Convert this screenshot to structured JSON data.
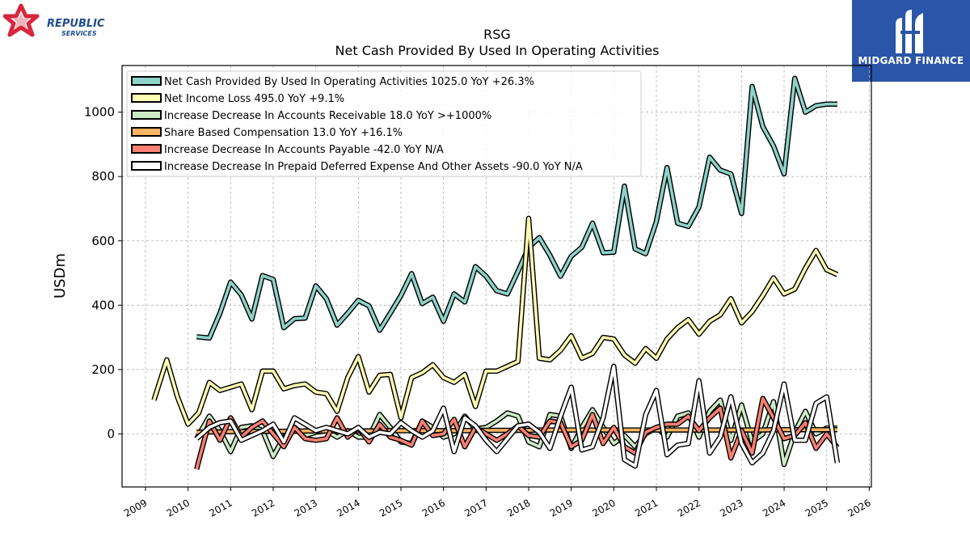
{
  "logos": {
    "left_line1": "REPUBLIC",
    "left_line2": "SERVICES",
    "right_text": "MIDGARD FINANCE"
  },
  "colors": {
    "series": [
      "#8dd3c7",
      "#ffffb3",
      "#ccebc5",
      "#fdb462",
      "#fb8072",
      "#ffffff"
    ],
    "outline": "#000000",
    "republic_red": "#d7263d",
    "republic_blue": "#1f4e8c",
    "midgard_bg": "#2a55a8"
  },
  "chart_data": {
    "type": "line",
    "title": "RSG",
    "subtitle": "Net Cash Provided By Used In Operating Activities",
    "ylabel": "USDm",
    "xlabel": "",
    "xlim": [
      2008.45,
      2026.05
    ],
    "ylim": [
      -165,
      1145
    ],
    "x_ticks": [
      "2009",
      "2010",
      "2011",
      "2012",
      "2013",
      "2014",
      "2015",
      "2016",
      "2017",
      "2018",
      "2019",
      "2020",
      "2021",
      "2022",
      "2023",
      "2024",
      "2025",
      "2026"
    ],
    "y_ticks": [
      0,
      200,
      400,
      600,
      800,
      1000
    ],
    "grid": true,
    "legend_position": "top-left",
    "series": [
      {
        "name": "Net Cash Provided By Used In Operating Activities  1025.0 YoY +26.3%",
        "x": [
          2010.2,
          2010.5,
          2010.75,
          2011.0,
          2011.25,
          2011.5,
          2011.75,
          2012.0,
          2012.25,
          2012.5,
          2012.75,
          2013.0,
          2013.25,
          2013.5,
          2013.75,
          2014.0,
          2014.25,
          2014.5,
          2014.75,
          2015.0,
          2015.25,
          2015.5,
          2015.75,
          2016.0,
          2016.25,
          2016.5,
          2016.75,
          2017.0,
          2017.25,
          2017.5,
          2017.75,
          2018.0,
          2018.25,
          2018.5,
          2018.75,
          2019.0,
          2019.25,
          2019.5,
          2019.75,
          2020.0,
          2020.25,
          2020.5,
          2020.75,
          2021.0,
          2021.25,
          2021.5,
          2021.75,
          2022.0,
          2022.25,
          2022.5,
          2022.75,
          2023.0,
          2023.25,
          2023.5,
          2023.75,
          2024.0,
          2024.25,
          2024.5,
          2024.75,
          2025.0,
          2025.25
        ],
        "values": [
          302,
          298,
          375,
          472,
          432,
          357,
          492,
          480,
          330,
          358,
          360,
          460,
          420,
          338,
          375,
          415,
          398,
          322,
          375,
          430,
          498,
          405,
          425,
          350,
          435,
          410,
          520,
          490,
          445,
          435,
          505,
          580,
          610,
          555,
          490,
          552,
          580,
          655,
          563,
          565,
          770,
          575,
          560,
          660,
          828,
          655,
          645,
          705,
          860,
          820,
          808,
          685,
          1080,
          955,
          895,
          808,
          1105,
          1000,
          1020,
          1025,
          1025
        ]
      },
      {
        "name": "Net Income Loss  495.0 YoY +9.1%",
        "x": [
          2009.2,
          2009.5,
          2009.75,
          2010.0,
          2010.25,
          2010.5,
          2010.75,
          2011.0,
          2011.25,
          2011.5,
          2011.75,
          2012.0,
          2012.25,
          2012.5,
          2012.75,
          2013.0,
          2013.25,
          2013.5,
          2013.75,
          2014.0,
          2014.25,
          2014.5,
          2014.75,
          2015.0,
          2015.25,
          2015.5,
          2015.75,
          2016.0,
          2016.25,
          2016.5,
          2016.75,
          2017.0,
          2017.25,
          2017.5,
          2017.75,
          2018.0,
          2018.25,
          2018.5,
          2018.75,
          2019.0,
          2019.25,
          2019.5,
          2019.75,
          2020.0,
          2020.25,
          2020.5,
          2020.75,
          2021.0,
          2021.25,
          2021.5,
          2021.75,
          2022.0,
          2022.25,
          2022.5,
          2022.75,
          2023.0,
          2023.25,
          2023.5,
          2023.75,
          2024.0,
          2024.25,
          2024.5,
          2024.75,
          2025.0,
          2025.25
        ],
        "values": [
          105,
          230,
          115,
          30,
          65,
          160,
          135,
          145,
          155,
          75,
          195,
          195,
          140,
          150,
          155,
          130,
          125,
          70,
          175,
          240,
          130,
          182,
          185,
          50,
          175,
          190,
          215,
          175,
          160,
          185,
          85,
          195,
          195,
          210,
          225,
          670,
          235,
          230,
          260,
          305,
          235,
          250,
          300,
          295,
          245,
          220,
          265,
          235,
          295,
          330,
          355,
          310,
          350,
          370,
          420,
          345,
          380,
          430,
          485,
          435,
          450,
          515,
          570,
          510,
          495
        ]
      },
      {
        "name": "Increase Decrease In Accounts Receivable  18.0 YoY >+1000%",
        "x": [
          2010.2,
          2010.5,
          2010.75,
          2011.0,
          2011.25,
          2011.5,
          2011.75,
          2012.0,
          2012.25,
          2012.5,
          2012.75,
          2013.0,
          2013.25,
          2013.5,
          2013.75,
          2014.0,
          2014.25,
          2014.5,
          2014.75,
          2015.0,
          2015.25,
          2015.5,
          2015.75,
          2016.0,
          2016.25,
          2016.5,
          2016.75,
          2017.0,
          2017.25,
          2017.5,
          2017.75,
          2018.0,
          2018.25,
          2018.5,
          2018.75,
          2019.0,
          2019.25,
          2019.5,
          2019.75,
          2020.0,
          2020.25,
          2020.5,
          2020.75,
          2021.0,
          2021.25,
          2021.5,
          2021.75,
          2022.0,
          2022.25,
          2022.5,
          2022.75,
          2023.0,
          2023.25,
          2023.5,
          2023.75,
          2024.0,
          2024.25,
          2024.5,
          2024.75,
          2025.0,
          2025.25
        ],
        "values": [
          -15,
          55,
          10,
          -55,
          20,
          25,
          10,
          -70,
          -10,
          20,
          -5,
          5,
          10,
          -10,
          10,
          -10,
          -10,
          60,
          20,
          -25,
          -30,
          40,
          20,
          -10,
          0,
          55,
          15,
          20,
          40,
          65,
          55,
          -25,
          -40,
          60,
          55,
          -45,
          20,
          75,
          20,
          -30,
          -5,
          -40,
          0,
          20,
          -10,
          55,
          65,
          -10,
          70,
          105,
          -20,
          90,
          -25,
          0,
          100,
          -95,
          5,
          70,
          0,
          18,
          18
        ]
      },
      {
        "name": "Share Based Compensation  13.0 YoY +16.1%",
        "x": [
          2010.2,
          2010.5,
          2010.75,
          2011.0,
          2011.25,
          2011.5,
          2011.75,
          2012.0,
          2012.25,
          2012.5,
          2012.75,
          2013.0,
          2013.25,
          2013.5,
          2013.75,
          2014.0,
          2014.25,
          2014.5,
          2014.75,
          2015.0,
          2015.25,
          2015.5,
          2015.75,
          2016.0,
          2016.25,
          2016.5,
          2016.75,
          2017.0,
          2017.25,
          2017.5,
          2017.75,
          2018.0,
          2018.25,
          2018.5,
          2018.75,
          2019.0,
          2019.25,
          2019.5,
          2019.75,
          2020.0,
          2020.25,
          2020.5,
          2020.75,
          2021.0,
          2021.25,
          2021.5,
          2021.75,
          2022.0,
          2022.25,
          2022.5,
          2022.75,
          2023.0,
          2023.25,
          2023.5,
          2023.75,
          2024.0,
          2024.25,
          2024.5,
          2024.75,
          2025.0,
          2025.25
        ],
        "values": [
          5,
          6,
          6,
          7,
          7,
          7,
          8,
          8,
          8,
          8,
          9,
          9,
          9,
          9,
          9,
          9,
          9,
          9,
          10,
          10,
          10,
          10,
          10,
          10,
          10,
          10,
          11,
          11,
          11,
          11,
          11,
          11,
          12,
          12,
          12,
          12,
          12,
          12,
          12,
          12,
          12,
          12,
          12,
          12,
          12,
          12,
          12,
          12,
          12,
          12,
          12,
          12,
          12,
          12,
          13,
          13,
          13,
          13,
          13,
          13,
          13
        ]
      },
      {
        "name": "Increase Decrease In Accounts Payable  -42.0 YoY N/A",
        "x": [
          2010.2,
          2010.5,
          2010.75,
          2011.0,
          2011.25,
          2011.5,
          2011.75,
          2012.0,
          2012.25,
          2012.5,
          2012.75,
          2013.0,
          2013.25,
          2013.5,
          2013.75,
          2014.0,
          2014.25,
          2014.5,
          2014.75,
          2015.0,
          2015.25,
          2015.5,
          2015.75,
          2016.0,
          2016.25,
          2016.5,
          2016.75,
          2017.0,
          2017.25,
          2017.5,
          2017.75,
          2018.0,
          2018.25,
          2018.5,
          2018.75,
          2019.0,
          2019.25,
          2019.5,
          2019.75,
          2020.0,
          2020.25,
          2020.5,
          2020.75,
          2021.0,
          2021.25,
          2021.5,
          2021.75,
          2022.0,
          2022.25,
          2022.5,
          2022.75,
          2023.0,
          2023.25,
          2023.5,
          2023.75,
          2024.0,
          2024.25,
          2024.5,
          2024.75,
          2025.0,
          2025.25
        ],
        "values": [
          -110,
          40,
          -20,
          50,
          -10,
          20,
          40,
          0,
          -40,
          20,
          -15,
          -20,
          -15,
          50,
          -10,
          20,
          -25,
          30,
          -10,
          -20,
          -35,
          40,
          -5,
          0,
          45,
          -40,
          20,
          0,
          -20,
          0,
          25,
          -5,
          -10,
          40,
          35,
          -40,
          -20,
          60,
          -30,
          20,
          -40,
          -60,
          5,
          20,
          30,
          30,
          55,
          10,
          50,
          80,
          -75,
          10,
          -60,
          110,
          50,
          -15,
          -5,
          35,
          -45,
          0,
          -42
        ]
      },
      {
        "name": "Increase Decrease In Prepaid Deferred Expense And Other Assets  -90.0 YoY N/A",
        "x": [
          2010.2,
          2010.5,
          2010.75,
          2011.0,
          2011.25,
          2011.5,
          2011.75,
          2012.0,
          2012.25,
          2012.5,
          2012.75,
          2013.0,
          2013.25,
          2013.5,
          2013.75,
          2014.0,
          2014.25,
          2014.5,
          2014.75,
          2015.0,
          2015.25,
          2015.5,
          2015.75,
          2016.0,
          2016.25,
          2016.5,
          2016.75,
          2017.0,
          2017.25,
          2017.5,
          2017.75,
          2018.0,
          2018.25,
          2018.5,
          2018.75,
          2019.0,
          2019.25,
          2019.5,
          2019.75,
          2020.0,
          2020.25,
          2020.5,
          2020.75,
          2021.0,
          2021.25,
          2021.5,
          2021.75,
          2022.0,
          2022.25,
          2022.5,
          2022.75,
          2023.0,
          2023.25,
          2023.5,
          2023.75,
          2024.0,
          2024.25,
          2024.5,
          2024.75,
          2025.0,
          2025.25
        ],
        "values": [
          -15,
          20,
          35,
          40,
          -20,
          -5,
          10,
          30,
          -25,
          50,
          30,
          10,
          20,
          10,
          0,
          20,
          -10,
          5,
          0,
          35,
          10,
          -10,
          10,
          80,
          -55,
          50,
          25,
          -20,
          -55,
          -15,
          25,
          30,
          5,
          -45,
          55,
          145,
          -50,
          -40,
          50,
          210,
          -80,
          -100,
          60,
          135,
          -65,
          -35,
          -30,
          165,
          -60,
          -10,
          115,
          -30,
          -90,
          -60,
          10,
          155,
          -20,
          -20,
          95,
          115,
          -90
        ]
      }
    ]
  }
}
